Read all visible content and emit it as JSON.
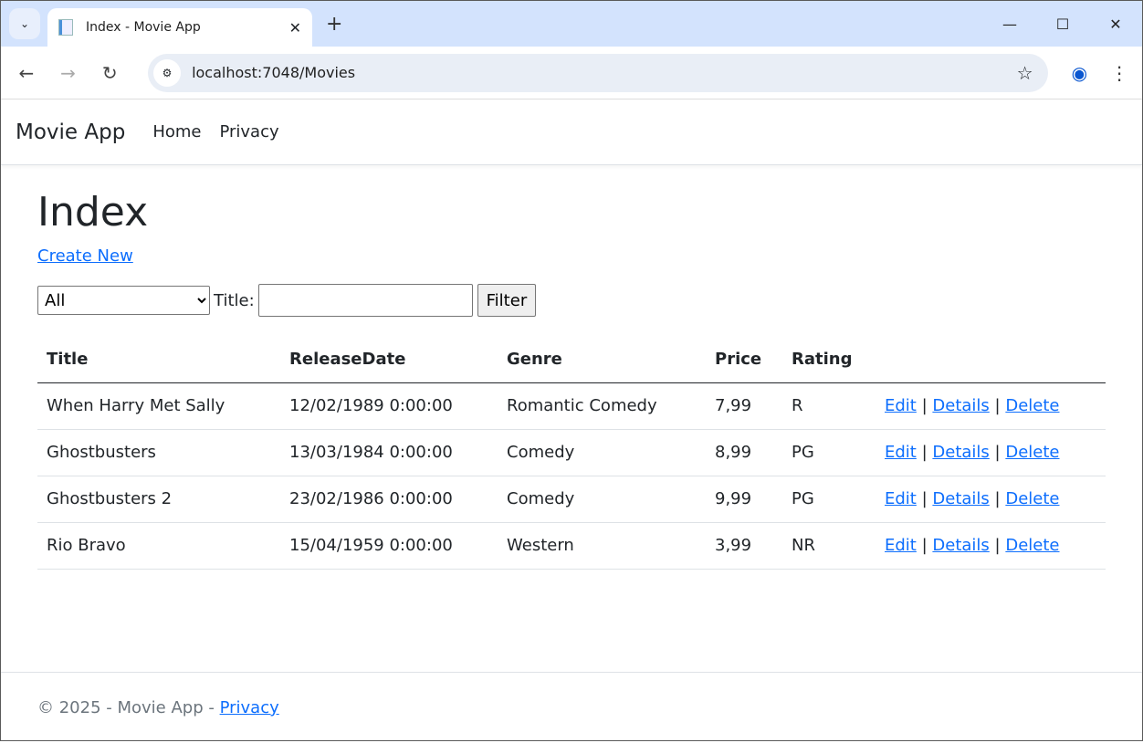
{
  "browser": {
    "tab_title": "Index - Movie App",
    "url": "localhost:7048/Movies"
  },
  "navbar": {
    "brand": "Movie App",
    "links": [
      "Home",
      "Privacy"
    ]
  },
  "page": {
    "title": "Index",
    "create_new": "Create New"
  },
  "filter": {
    "genre_selected": "All",
    "title_label": "Title:",
    "title_value": "",
    "button": "Filter"
  },
  "table": {
    "headers": [
      "Title",
      "ReleaseDate",
      "Genre",
      "Price",
      "Rating"
    ],
    "rows": [
      [
        "When Harry Met Sally",
        "12/02/1989 0:00:00",
        "Romantic Comedy",
        "7,99",
        "R"
      ],
      [
        "Ghostbusters",
        "13/03/1984 0:00:00",
        "Comedy",
        "8,99",
        "PG"
      ],
      [
        "Ghostbusters 2",
        "23/02/1986 0:00:00",
        "Comedy",
        "9,99",
        "PG"
      ],
      [
        "Rio Bravo",
        "15/04/1959 0:00:00",
        "Western",
        "3,99",
        "NR"
      ]
    ],
    "actions": {
      "edit": "Edit",
      "details": "Details",
      "delete": "Delete",
      "sep": "|"
    }
  },
  "footer": {
    "text": "© 2025 - Movie App - ",
    "link": "Privacy"
  }
}
